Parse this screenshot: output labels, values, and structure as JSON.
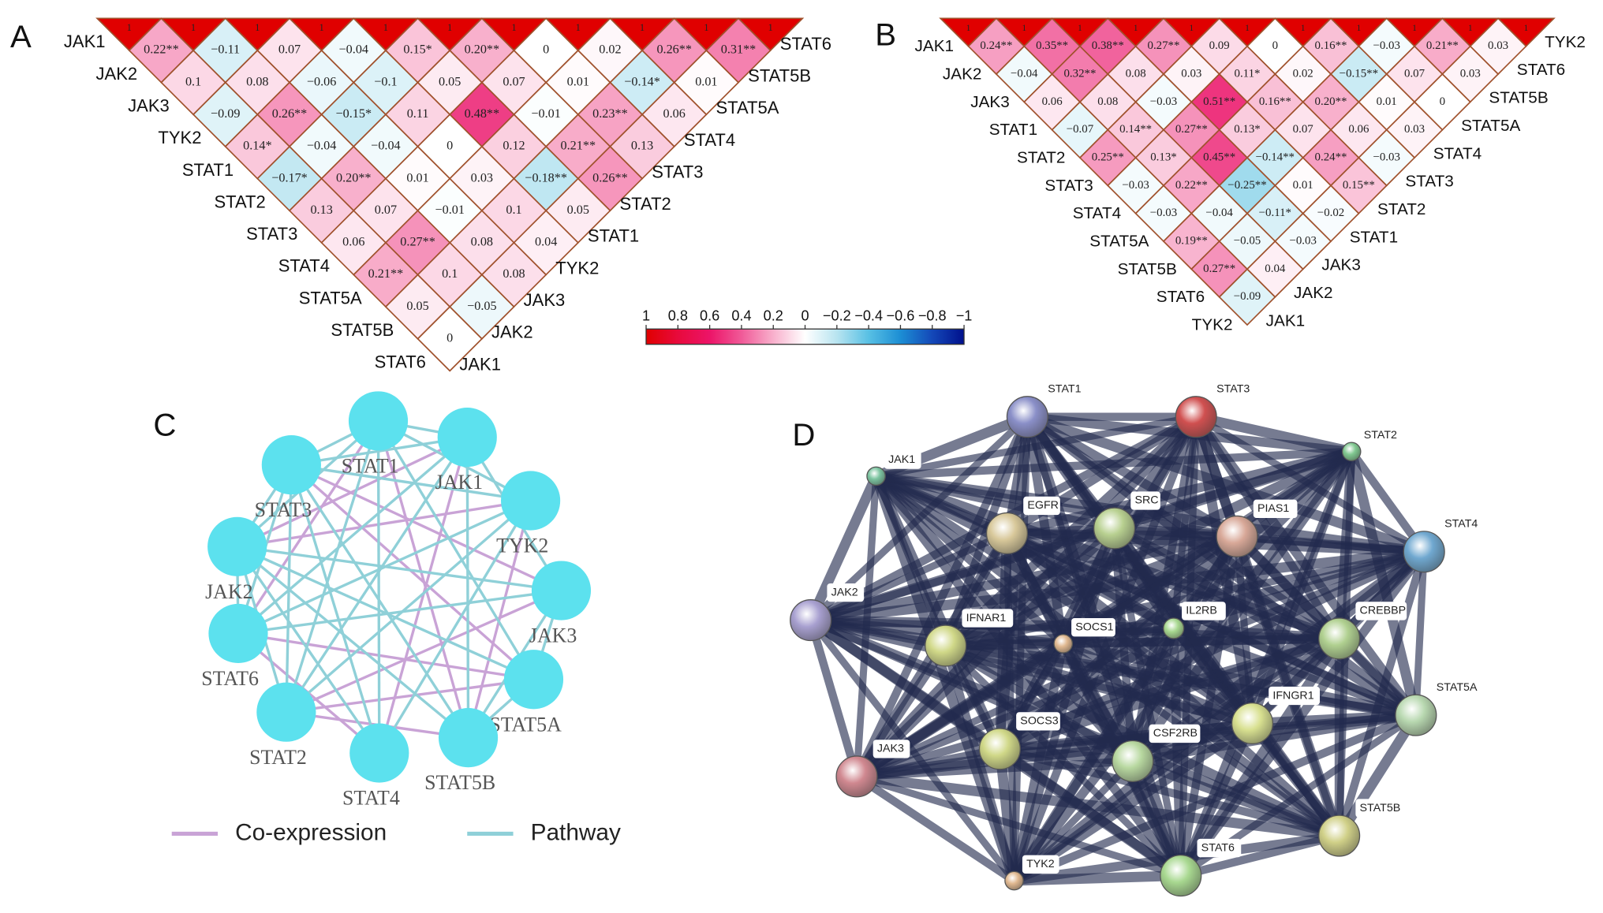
{
  "chart_data": [
    {
      "type": "heatmap",
      "panel_label": "A",
      "border_color": "#a0522d",
      "row_labels": [
        "JAK1",
        "JAK2",
        "JAK3",
        "TYK2",
        "STAT1",
        "STAT2",
        "STAT3",
        "STAT4",
        "STAT5A",
        "STAT5B",
        "STAT6"
      ],
      "column_labels": [
        "STAT6",
        "STAT5B",
        "STAT5A",
        "STAT4",
        "STAT3",
        "STAT2",
        "STAT1",
        "TYK2",
        "JAK3",
        "JAK2",
        "JAK1"
      ],
      "values": [
        [
          1,
          1,
          1,
          1,
          1,
          1,
          1,
          1,
          1,
          1,
          1
        ],
        [
          0.22,
          -0.11,
          0.07,
          -0.04,
          0.15,
          0.2,
          0,
          0.02,
          0.26,
          0.31
        ],
        [
          0.1,
          0.08,
          -0.06,
          -0.1,
          0.05,
          0.07,
          0.01,
          -0.14,
          0.01
        ],
        [
          -0.09,
          0.26,
          -0.15,
          0.11,
          0.48,
          -0.01,
          0.23,
          0.06
        ],
        [
          0.14,
          -0.04,
          -0.04,
          0,
          0.12,
          0.21,
          0.13
        ],
        [
          -0.17,
          0.2,
          0.01,
          0.03,
          -0.18,
          0.26
        ],
        [
          0.13,
          0.07,
          -0.01,
          0.1,
          0.05
        ],
        [
          0.06,
          0.27,
          0.08,
          0.04
        ],
        [
          0.21,
          0.1,
          0.08
        ],
        [
          0.05,
          -0.05
        ],
        [
          0
        ]
      ],
      "value_labels": [
        [
          "1",
          "1",
          "1",
          "1",
          "1",
          "1",
          "1",
          "1",
          "1",
          "1",
          "1"
        ],
        [
          "0.22**",
          "−0.11",
          "0.07",
          "−0.04",
          "0.15*",
          "0.20**",
          "0",
          "0.02",
          "0.26**",
          "0.31**"
        ],
        [
          "0.1",
          "0.08",
          "−0.06",
          "−0.1",
          "0.05",
          "0.07",
          "0.01",
          "−0.14*",
          "0.01"
        ],
        [
          "−0.09",
          "0.26**",
          "−0.15*",
          "0.11",
          "0.48**",
          "−0.01",
          "0.23**",
          "0.06"
        ],
        [
          "0.14*",
          "−0.04",
          "−0.04",
          "0",
          "0.12",
          "0.21**",
          "0.13"
        ],
        [
          "−0.17*",
          "0.20**",
          "0.01",
          "0.03",
          "−0.18**",
          "0.26**"
        ],
        [
          "0.13",
          "0.07",
          "−0.01",
          "0.1",
          "0.05"
        ],
        [
          "0.06",
          "0.27**",
          "0.08",
          "0.04"
        ],
        [
          "0.21**",
          "0.1",
          "0.08"
        ],
        [
          "0.05",
          "−0.05"
        ],
        [
          "0"
        ]
      ]
    },
    {
      "type": "heatmap",
      "panel_label": "B",
      "border_color": "#a0522d",
      "row_labels": [
        "JAK1",
        "JAK2",
        "JAK3",
        "STAT1",
        "STAT2",
        "STAT3",
        "STAT4",
        "STAT5A",
        "STAT5B",
        "STAT6",
        "TYK2"
      ],
      "column_labels": [
        "TYK2",
        "STAT6",
        "STAT5B",
        "STAT5A",
        "STAT4",
        "STAT3",
        "STAT2",
        "STAT1",
        "JAK3",
        "JAK2",
        "JAK1"
      ],
      "values": [
        [
          1,
          1,
          1,
          1,
          1,
          1,
          1,
          1,
          1,
          1,
          1
        ],
        [
          0.24,
          0.35,
          0.38,
          0.27,
          0.09,
          0,
          0.16,
          -0.03,
          0.21,
          0.03
        ],
        [
          -0.04,
          0.32,
          0.08,
          0.03,
          0.11,
          0.02,
          -0.15,
          0.07,
          0.03
        ],
        [
          0.06,
          0.08,
          -0.03,
          0.51,
          0.16,
          0.2,
          0.01,
          0
        ],
        [
          -0.07,
          0.14,
          0.27,
          0.13,
          0.07,
          0.06,
          0.03
        ],
        [
          0.25,
          0.13,
          0.45,
          -0.14,
          0.24,
          -0.03
        ],
        [
          -0.03,
          0.22,
          -0.25,
          0.01,
          0.15
        ],
        [
          -0.03,
          -0.04,
          -0.11,
          -0.02
        ],
        [
          0.19,
          -0.05,
          -0.03
        ],
        [
          0.27,
          0.04
        ],
        [
          -0.09
        ]
      ],
      "value_labels": [
        [
          "1",
          "1",
          "1",
          "1",
          "1",
          "1",
          "1",
          "1",
          "1",
          "1",
          "1"
        ],
        [
          "0.24**",
          "0.35**",
          "0.38**",
          "0.27**",
          "0.09",
          "0",
          "0.16**",
          "−0.03",
          "0.21**",
          "0.03"
        ],
        [
          "−0.04",
          "0.32**",
          "0.08",
          "0.03",
          "0.11*",
          "0.02",
          "−0.15**",
          "0.07",
          "0.03"
        ],
        [
          "0.06",
          "0.08",
          "−0.03",
          "0.51**",
          "0.16**",
          "0.20**",
          "0.01",
          "0"
        ],
        [
          "−0.07",
          "0.14**",
          "0.27**",
          "0.13*",
          "0.07",
          "0.06",
          "0.03"
        ],
        [
          "0.25**",
          "0.13*",
          "0.45**",
          "−0.14**",
          "0.24**",
          "−0.03"
        ],
        [
          "−0.03",
          "0.22**",
          "−0.25**",
          "0.01",
          "0.15**"
        ],
        [
          "−0.03",
          "−0.04",
          "−0.11*",
          "−0.02"
        ],
        [
          "0.19**",
          "−0.05",
          "−0.03"
        ],
        [
          "0.27**",
          "0.04"
        ],
        [
          "−0.09"
        ]
      ]
    },
    {
      "type": "colorbar",
      "xlim": [
        1,
        -1
      ],
      "xticks": [
        1,
        0.8,
        0.6,
        0.4,
        0.2,
        0,
        {
          "value": -0.2,
          "label": "−0.2"
        },
        {
          "value": -0.4,
          "label": "−0.4"
        },
        {
          "value": -0.6,
          "label": "−0.6"
        },
        {
          "value": -0.8,
          "label": "−0.8"
        },
        {
          "value": -1,
          "label": "−1"
        }
      ],
      "colors": [
        "#e00000",
        "#e80a3c",
        "#ec1468",
        "#f05a98",
        "#f8b0cc",
        "#ffffff",
        "#b8e4f0",
        "#58c0e4",
        "#1c8ed4",
        "#1448b8",
        "#00108c"
      ]
    },
    {
      "type": "network",
      "panel_label": "C",
      "node_color": "#5ce1ee",
      "nodes": [
        {
          "label": "STAT1"
        },
        {
          "label": "JAK1"
        },
        {
          "label": "TYK2"
        },
        {
          "label": "JAK3"
        },
        {
          "label": "STAT5A"
        },
        {
          "label": "STAT5B"
        },
        {
          "label": "STAT4"
        },
        {
          "label": "STAT2"
        },
        {
          "label": "STAT6"
        },
        {
          "label": "JAK2"
        },
        {
          "label": "STAT3"
        }
      ],
      "series": [
        {
          "name": "Co-expression",
          "color": "#c9a3d6",
          "links": [
            [
              "STAT1",
              "STAT6"
            ],
            [
              "STAT1",
              "STAT5B"
            ],
            [
              "JAK1",
              "JAK2"
            ],
            [
              "JAK1",
              "STAT4"
            ],
            [
              "TYK2",
              "JAK2"
            ],
            [
              "TYK2",
              "STAT5B"
            ],
            [
              "JAK3",
              "STAT3"
            ],
            [
              "STAT5A",
              "STAT2"
            ],
            [
              "STAT5A",
              "STAT6"
            ],
            [
              "STAT4",
              "STAT6"
            ],
            [
              "STAT2",
              "STAT5B"
            ],
            [
              "STAT3",
              "STAT5A"
            ],
            [
              "JAK3",
              "STAT2"
            ]
          ]
        },
        {
          "name": "Pathway",
          "color": "#8fd0d8",
          "links": [
            [
              "STAT1",
              "JAK1"
            ],
            [
              "STAT1",
              "TYK2"
            ],
            [
              "STAT1",
              "JAK2"
            ],
            [
              "STAT1",
              "STAT3"
            ],
            [
              "STAT1",
              "STAT2"
            ],
            [
              "STAT1",
              "STAT5A"
            ],
            [
              "STAT1",
              "STAT4"
            ],
            [
              "JAK1",
              "STAT3"
            ],
            [
              "JAK1",
              "STAT5B"
            ],
            [
              "JAK1",
              "STAT6"
            ],
            [
              "JAK1",
              "STAT2"
            ],
            [
              "JAK1",
              "JAK3"
            ],
            [
              "TYK2",
              "STAT3"
            ],
            [
              "TYK2",
              "STAT4"
            ],
            [
              "TYK2",
              "STAT6"
            ],
            [
              "TYK2",
              "STAT2"
            ],
            [
              "JAK3",
              "STAT5A"
            ],
            [
              "JAK3",
              "STAT5B"
            ],
            [
              "JAK3",
              "JAK2"
            ],
            [
              "JAK3",
              "STAT6"
            ],
            [
              "STAT5A",
              "JAK2"
            ],
            [
              "STAT5A",
              "STAT5B"
            ],
            [
              "STAT5B",
              "JAK2"
            ],
            [
              "STAT5B",
              "STAT3"
            ],
            [
              "STAT4",
              "JAK2"
            ],
            [
              "STAT4",
              "STAT3"
            ],
            [
              "STAT2",
              "JAK2"
            ],
            [
              "STAT6",
              "STAT3"
            ],
            [
              "JAK2",
              "STAT3"
            ],
            [
              "STAT6",
              "JAK2"
            ],
            [
              "STAT2",
              "STAT3"
            ]
          ]
        }
      ]
    },
    {
      "type": "network",
      "panel_label": "D",
      "edge_color": "#222a4e",
      "nodes": [
        {
          "label": "STAT1",
          "color": "#8a8fc8"
        },
        {
          "label": "STAT3",
          "color": "#d05050"
        },
        {
          "label": "STAT2",
          "color": "#80c890"
        },
        {
          "label": "JAK1",
          "color": "#7cc4a0"
        },
        {
          "label": "EGFR",
          "color": "#d8c89a"
        },
        {
          "label": "SRC",
          "color": "#b8d090"
        },
        {
          "label": "PIAS1",
          "color": "#d8a898"
        },
        {
          "label": "STAT4",
          "color": "#70a8d0"
        },
        {
          "label": "JAK2",
          "color": "#a8a0d0"
        },
        {
          "label": "IFNAR1",
          "color": "#d0d888"
        },
        {
          "label": "SOCS1",
          "color": "#e0b890"
        },
        {
          "label": "IL2RB",
          "color": "#a8d890"
        },
        {
          "label": "CREBBP",
          "color": "#b0d090"
        },
        {
          "label": "STAT5A",
          "color": "#b8d8b0"
        },
        {
          "label": "IFNGR1",
          "color": "#d8e090"
        },
        {
          "label": "SOCS3",
          "color": "#d0d888"
        },
        {
          "label": "CSF2RB",
          "color": "#b8d8a0"
        },
        {
          "label": "JAK3",
          "color": "#d08890"
        },
        {
          "label": "STAT5B",
          "color": "#d0d088"
        },
        {
          "label": "STAT6",
          "color": "#a8d890"
        },
        {
          "label": "TYK2",
          "color": "#e0b890"
        }
      ]
    }
  ]
}
